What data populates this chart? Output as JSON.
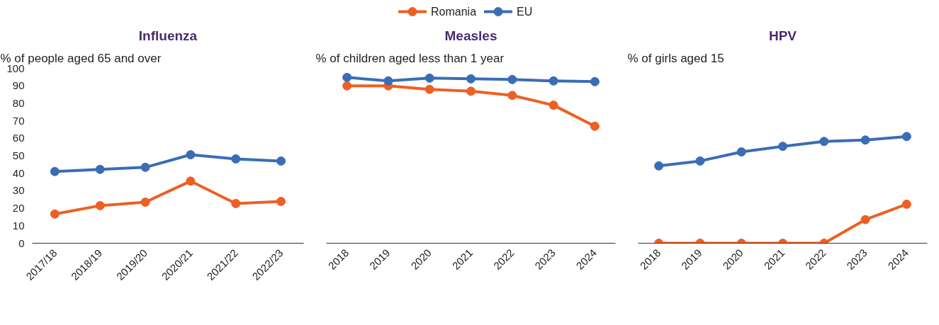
{
  "chart_data": [
    {
      "type": "line",
      "title": "Influenza",
      "subtitle": "% of people aged 65 and over",
      "categories": [
        "2017/18",
        "2018/19",
        "2019/20",
        "2020/21",
        "2021/22",
        "2022/23"
      ],
      "ylim": [
        0,
        100
      ],
      "yticks": [
        0,
        10,
        20,
        30,
        40,
        50,
        60,
        70,
        80,
        90,
        100
      ],
      "grid": false,
      "legend": "top",
      "marker": "circle",
      "line_style": "solid",
      "series": [
        {
          "name": "Romania",
          "color": "#ee5f23",
          "values": [
            16.7,
            21.5,
            23.5,
            35.5,
            22.7,
            23.9
          ]
        },
        {
          "name": "EU",
          "color": "#3a6db5",
          "values": [
            41,
            42.2,
            43.4,
            50.6,
            48.2,
            47
          ]
        }
      ]
    },
    {
      "type": "line",
      "title": "Measles",
      "subtitle": "% of children aged less than 1 year",
      "categories": [
        "2018",
        "2019",
        "2020",
        "2021",
        "2022",
        "2023",
        "2024"
      ],
      "ylim": [
        0,
        100
      ],
      "tick_labels": "x",
      "grid": false,
      "legend": false,
      "marker": "circle",
      "line_style": "solid",
      "series": [
        {
          "color": "#ee5f23",
          "values": [
            90,
            90,
            88,
            86.9,
            84.5,
            78.9,
            66.9
          ]
        },
        {
          "color": "#3a6db5",
          "values": [
            94.8,
            92.8,
            94.4,
            94,
            93.6,
            92.8,
            92.4
          ]
        }
      ]
    },
    {
      "type": "line",
      "title": "HPV",
      "subtitle": "% of girls aged 15",
      "categories": [
        "2018",
        "2019",
        "2020",
        "2021",
        "2022",
        "2023",
        "2024"
      ],
      "ylim": [
        0,
        100
      ],
      "tick_labels": "x",
      "grid": false,
      "legend": false,
      "marker": "circle",
      "line_style": "solid",
      "series": [
        {
          "color": "#ee5f23",
          "values": [
            0,
            0,
            0,
            0,
            0,
            13.5,
            22.3
          ]
        },
        {
          "color": "#3a6db5",
          "values": [
            44.2,
            47,
            52.2,
            55.4,
            58.2,
            59,
            61
          ]
        }
      ]
    }
  ]
}
